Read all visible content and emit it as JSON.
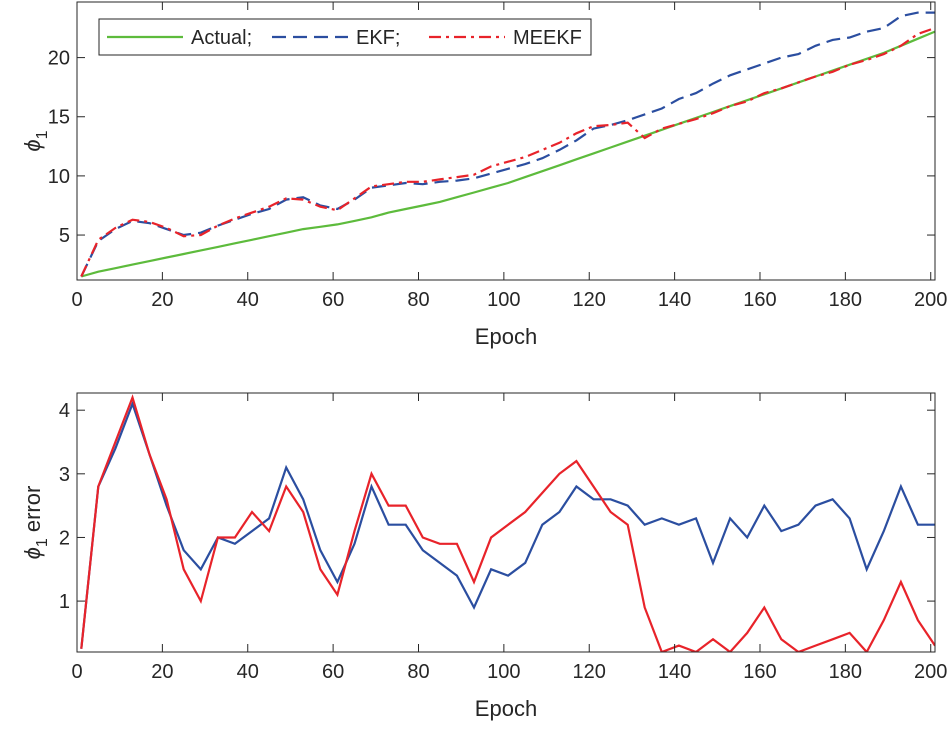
{
  "chart_data": [
    {
      "type": "line",
      "xlabel": "Epoch",
      "ylabel_symbol": "ϕ",
      "ylabel_subscript": "1",
      "xlim": [
        0,
        201
      ],
      "ylim": [
        1.2,
        24.7
      ],
      "xticks": [
        0,
        20,
        40,
        60,
        80,
        100,
        120,
        140,
        160,
        180,
        200
      ],
      "yticks": [
        5,
        10,
        15,
        20
      ],
      "legend": "upper-left",
      "legend_layout": "horizontal",
      "x": [
        1,
        5,
        9,
        13,
        17,
        21,
        25,
        29,
        33,
        37,
        41,
        45,
        49,
        53,
        57,
        61,
        65,
        69,
        73,
        77,
        81,
        85,
        89,
        93,
        97,
        101,
        105,
        109,
        113,
        117,
        121,
        125,
        129,
        133,
        137,
        141,
        145,
        149,
        153,
        157,
        161,
        165,
        169,
        173,
        177,
        181,
        185,
        189,
        193,
        197,
        201
      ],
      "series": [
        {
          "name": "Actual;",
          "color": "#5dbb3c",
          "linestyle": "solid",
          "values": [
            1.5,
            1.9,
            2.2,
            2.5,
            2.8,
            3.1,
            3.4,
            3.7,
            4.0,
            4.3,
            4.6,
            4.9,
            5.2,
            5.5,
            5.7,
            5.9,
            6.2,
            6.5,
            6.9,
            7.2,
            7.5,
            7.8,
            8.2,
            8.6,
            9.0,
            9.4,
            9.9,
            10.4,
            10.9,
            11.4,
            11.9,
            12.4,
            12.9,
            13.4,
            13.9,
            14.4,
            14.9,
            15.4,
            15.9,
            16.4,
            16.9,
            17.4,
            17.9,
            18.4,
            18.9,
            19.4,
            19.9,
            20.4,
            21.0,
            21.6,
            22.2
          ]
        },
        {
          "name": "EKF;",
          "color": "#2b4ea0",
          "linestyle": "dashed",
          "values": [
            1.5,
            4.5,
            5.5,
            6.2,
            6.0,
            5.5,
            5.0,
            5.2,
            5.8,
            6.3,
            6.8,
            7.2,
            8.0,
            8.2,
            7.5,
            7.2,
            8.0,
            9.0,
            9.2,
            9.4,
            9.3,
            9.5,
            9.6,
            9.8,
            10.2,
            10.6,
            11.0,
            11.5,
            12.2,
            13.0,
            14.0,
            14.3,
            14.7,
            15.2,
            15.7,
            16.5,
            17.0,
            17.8,
            18.5,
            19.0,
            19.5,
            20.0,
            20.3,
            21.0,
            21.5,
            21.7,
            22.2,
            22.5,
            23.5,
            23.8,
            23.8
          ]
        },
        {
          "name": "MEEKF",
          "color": "#e8232a",
          "linestyle": "dashdot",
          "values": [
            1.5,
            4.6,
            5.6,
            6.3,
            6.1,
            5.6,
            4.9,
            5.0,
            5.8,
            6.4,
            6.9,
            7.4,
            8.1,
            8.0,
            7.4,
            7.1,
            8.1,
            9.1,
            9.3,
            9.5,
            9.5,
            9.7,
            9.9,
            10.1,
            10.8,
            11.2,
            11.6,
            12.2,
            12.8,
            13.6,
            14.2,
            14.3,
            14.5,
            13.2,
            14.0,
            14.4,
            14.8,
            15.3,
            15.9,
            16.3,
            17.0,
            17.4,
            17.9,
            18.4,
            18.8,
            19.4,
            19.8,
            20.3,
            21.0,
            22.0,
            22.5
          ]
        }
      ]
    },
    {
      "type": "line",
      "xlabel": "Epoch",
      "ylabel_symbol": "ϕ",
      "ylabel_subscript": "1",
      "ylabel_suffix": "error",
      "xlim": [
        0,
        201
      ],
      "ylim": [
        0.2,
        4.27
      ],
      "xticks": [
        0,
        20,
        40,
        60,
        80,
        100,
        120,
        140,
        160,
        180,
        200
      ],
      "yticks": [
        1,
        2,
        3,
        4
      ],
      "x": [
        1,
        5,
        9,
        13,
        17,
        21,
        25,
        29,
        33,
        37,
        41,
        45,
        49,
        53,
        57,
        61,
        65,
        69,
        73,
        77,
        81,
        85,
        89,
        93,
        97,
        101,
        105,
        109,
        113,
        117,
        121,
        125,
        129,
        133,
        137,
        141,
        145,
        149,
        153,
        157,
        161,
        165,
        169,
        173,
        177,
        181,
        185,
        189,
        193,
        197,
        201
      ],
      "series": [
        {
          "color": "#2b4ea0",
          "linestyle": "solid",
          "values": [
            0.25,
            2.8,
            3.4,
            4.1,
            3.3,
            2.5,
            1.8,
            1.5,
            2.0,
            1.9,
            2.1,
            2.3,
            3.1,
            2.6,
            1.8,
            1.3,
            1.9,
            2.8,
            2.2,
            2.2,
            1.8,
            1.6,
            1.4,
            0.9,
            1.5,
            1.4,
            1.6,
            2.2,
            2.4,
            2.8,
            2.6,
            2.6,
            2.5,
            2.2,
            2.3,
            2.2,
            2.3,
            1.6,
            2.3,
            2.0,
            2.5,
            2.1,
            2.2,
            2.5,
            2.6,
            2.3,
            1.5,
            2.1,
            2.8,
            2.2,
            2.2
          ]
        },
        {
          "color": "#e8232a",
          "linestyle": "solid",
          "values": [
            0.25,
            2.8,
            3.5,
            4.2,
            3.3,
            2.6,
            1.5,
            1.0,
            2.0,
            2.0,
            2.4,
            2.1,
            2.8,
            2.4,
            1.5,
            1.1,
            2.1,
            3.0,
            2.5,
            2.5,
            2.0,
            1.9,
            1.9,
            1.3,
            2.0,
            2.2,
            2.4,
            2.7,
            3.0,
            3.2,
            2.8,
            2.4,
            2.2,
            0.9,
            0.2,
            0.3,
            0.2,
            0.4,
            0.2,
            0.5,
            0.9,
            0.4,
            0.2,
            0.3,
            0.4,
            0.5,
            0.2,
            0.7,
            1.3,
            0.7,
            0.3
          ]
        }
      ]
    }
  ]
}
